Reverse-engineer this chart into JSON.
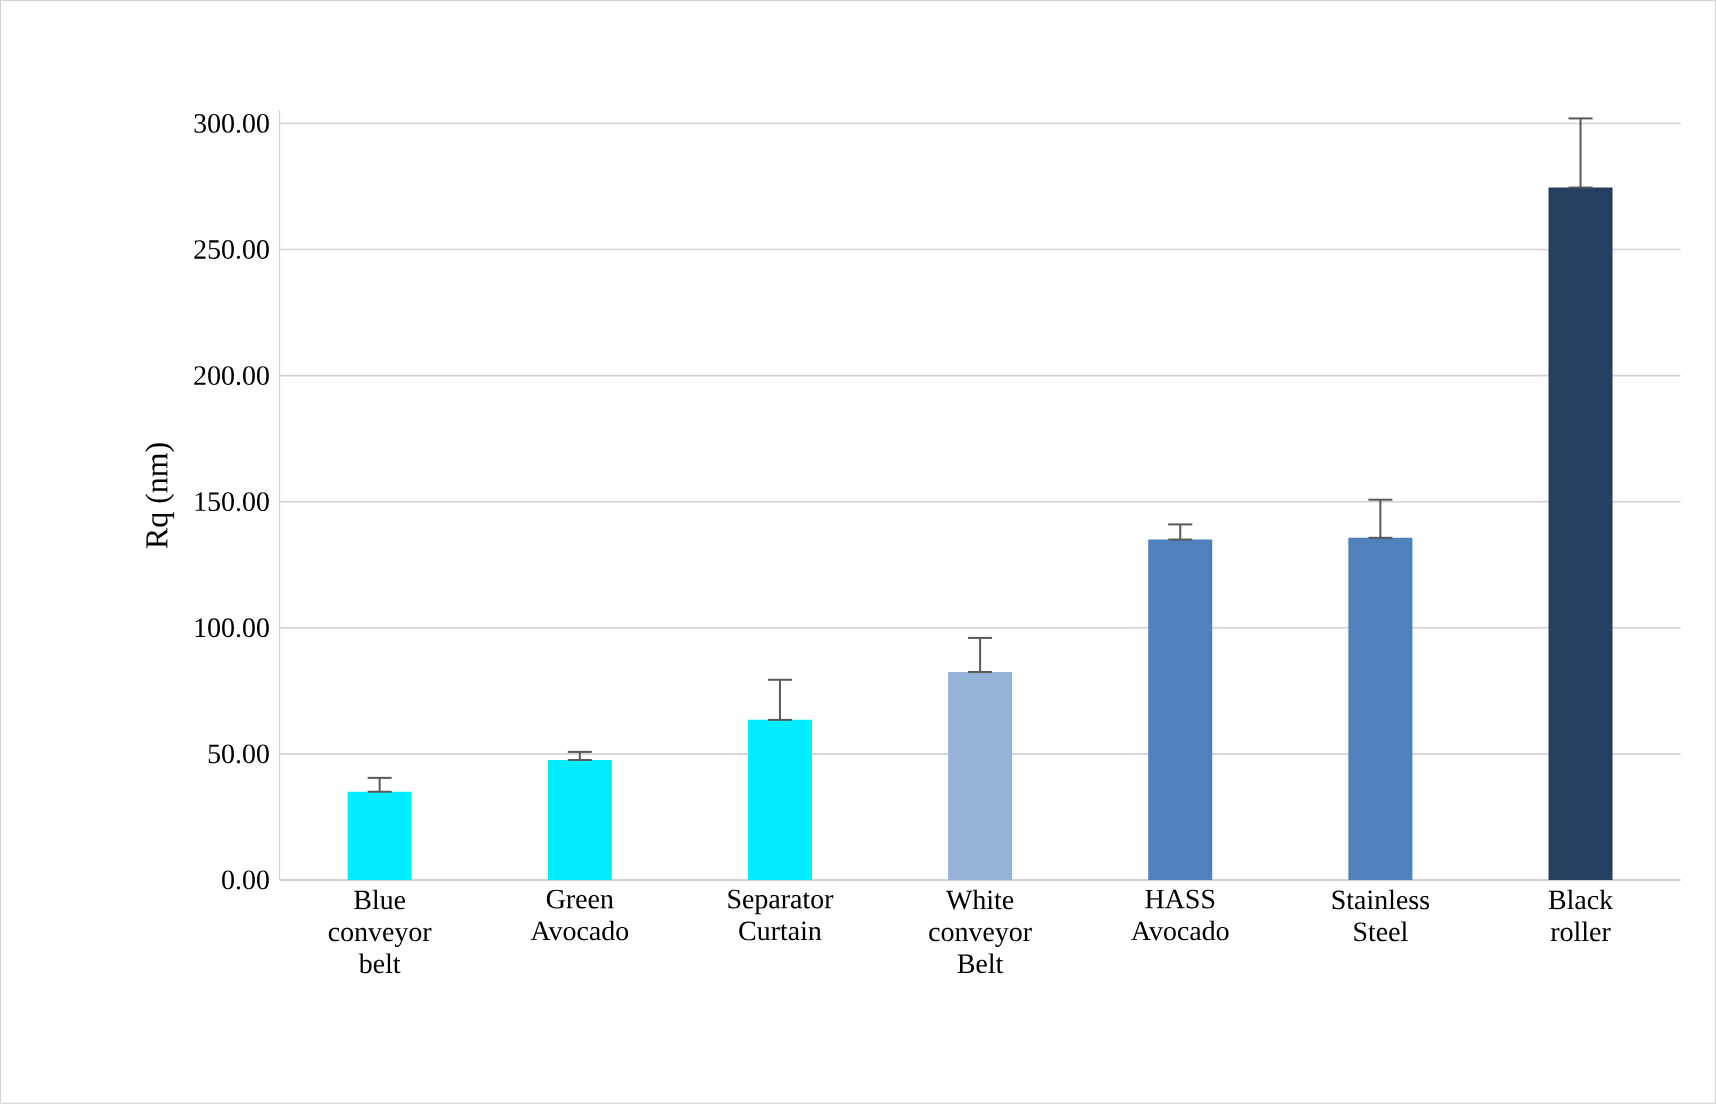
{
  "chart_data": {
    "type": "bar",
    "ylabel": "Rq (nm)",
    "categories": [
      "Blue conveyor belt",
      "Green Avocado",
      "Separator Curtain",
      "White conveyor Belt",
      "HASS Avocado",
      "Stainless Steel",
      "Black roller"
    ],
    "values": [
      35,
      47.6,
      63.5,
      82.5,
      135,
      135.7,
      274.6
    ],
    "errors": [
      [
        35,
        40.5
      ],
      [
        47.6,
        50.8
      ],
      [
        63.5,
        79.4
      ],
      [
        82.5,
        96
      ],
      [
        135,
        141
      ],
      [
        135.7,
        150.8
      ],
      [
        274.6,
        302
      ]
    ],
    "colors": [
      "#00eeff",
      "#00eeff",
      "#00eeff",
      "#95b3d7",
      "#4f81bd",
      "#4f81bd",
      "#243f60"
    ],
    "ylim": [
      0,
      305
    ],
    "yticks": [
      {
        "value": 0,
        "label": "0.00"
      },
      {
        "value": 50,
        "label": "50.00"
      },
      {
        "value": 100,
        "label": "100.00"
      },
      {
        "value": 150,
        "label": "150.00"
      },
      {
        "value": 200,
        "label": "200.00"
      },
      {
        "value": 250,
        "label": "250.00"
      },
      {
        "value": 300,
        "label": "300.00"
      }
    ],
    "grid": "y"
  }
}
